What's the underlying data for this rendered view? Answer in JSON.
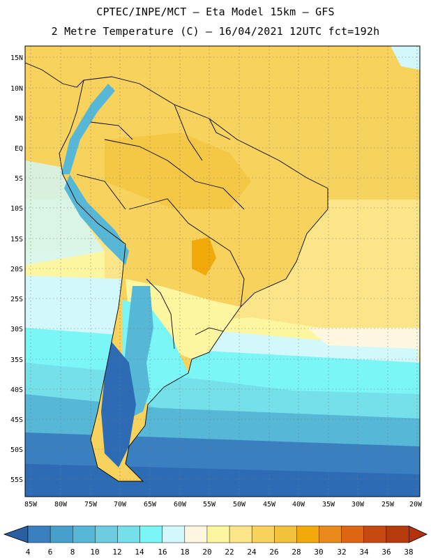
{
  "header": {
    "line1": "CPTEC/INPE/MCT –  Eta Model 15km – GFS",
    "line2": "2 Metre Temperature (C) – 16/04/2021 12UTC fct=192h"
  },
  "map": {
    "lat_labels": [
      "15N",
      "10N",
      "5N",
      "EQ",
      "5S",
      "10S",
      "15S",
      "20S",
      "25S",
      "30S",
      "35S",
      "40S",
      "45S",
      "50S",
      "55S"
    ],
    "lon_labels": [
      "85W",
      "80W",
      "75W",
      "70W",
      "65W",
      "60W",
      "55W",
      "50W",
      "45W",
      "40W",
      "35W",
      "30W",
      "25W",
      "20W"
    ],
    "lat_range": [
      -58,
      16
    ],
    "lon_range": [
      -86,
      -20
    ]
  },
  "colorbar": {
    "labels": [
      "4",
      "6",
      "8",
      "10",
      "12",
      "14",
      "16",
      "18",
      "20",
      "22",
      "24",
      "26",
      "28",
      "30",
      "32",
      "34",
      "36",
      "38"
    ],
    "colors": [
      "#2d6cb5",
      "#3a80c0",
      "#47a0cc",
      "#56b8d6",
      "#6ccde0",
      "#76e0ea",
      "#7af6f7",
      "#d2f8fc",
      "#fdf7e0",
      "#fdf6a0",
      "#fbe588",
      "#f7d25c",
      "#f2c23c",
      "#f2aa0a",
      "#e98a1a",
      "#de6612",
      "#c74912",
      "#b73a0c"
    ],
    "low_color": "#2a5fa0",
    "high_color": "#b2320c"
  }
}
